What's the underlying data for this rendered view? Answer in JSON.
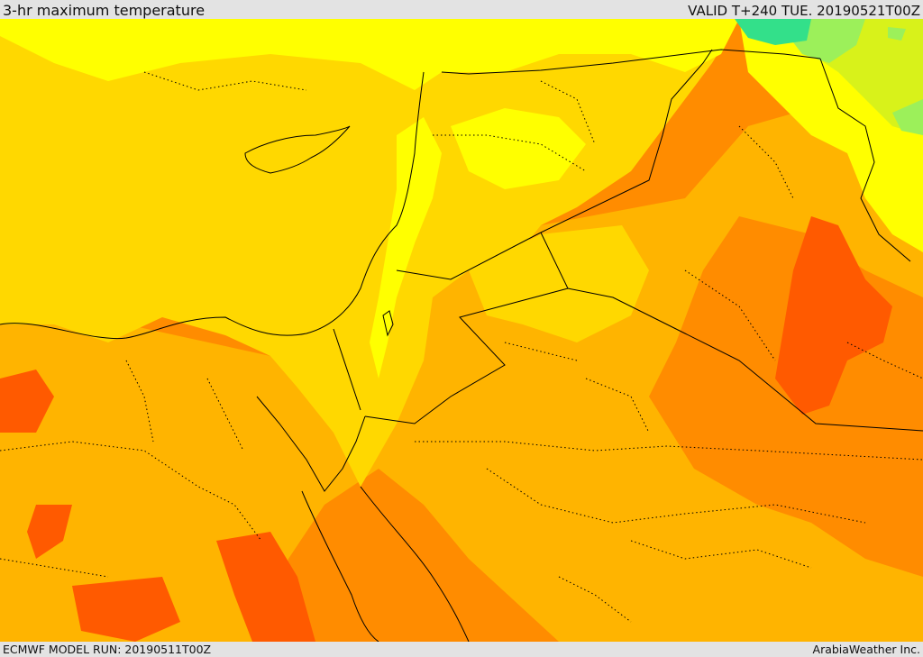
{
  "header": {
    "title": "3-hr maximum temperature",
    "valid": "VALID T+240 TUE. 20190521T00Z"
  },
  "footer": {
    "model_run": "ECMWF MODEL RUN: 20190511T00Z",
    "credit": "ArabiaWeather Inc."
  },
  "map": {
    "colors": {
      "green": "#33e08a",
      "light_green": "#9cf05a",
      "yellow_green": "#d8f21a",
      "yellow": "#ffff00",
      "gold": "#ffd800",
      "amber": "#ffb400",
      "orange": "#ff8c00",
      "red_orange": "#ff5a00",
      "border": "#000000"
    }
  }
}
